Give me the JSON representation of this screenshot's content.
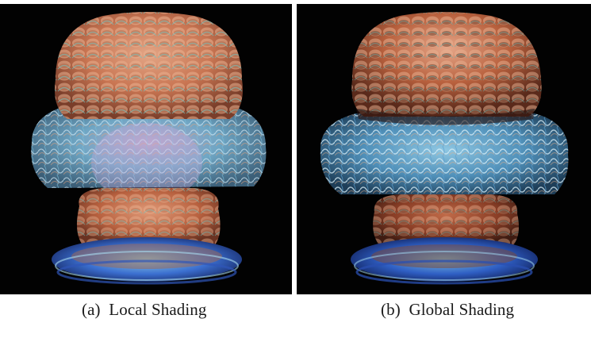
{
  "panels": [
    {
      "image_description": "volume rendering of a mushroom-shaped structure, local shading",
      "caption": "(a)  Local Shading"
    },
    {
      "image_description": "volume rendering of a mushroom-shaped structure, global shading",
      "caption": "(b)  Global Shading"
    }
  ],
  "colors": {
    "background": "#020202",
    "surface_orange": "#c8714e",
    "surface_peach": "#e09a78",
    "fiber_blue": "#6fb6d8",
    "fiber_teal": "#5aa4a0",
    "base_blue": "#3b6fd0"
  }
}
